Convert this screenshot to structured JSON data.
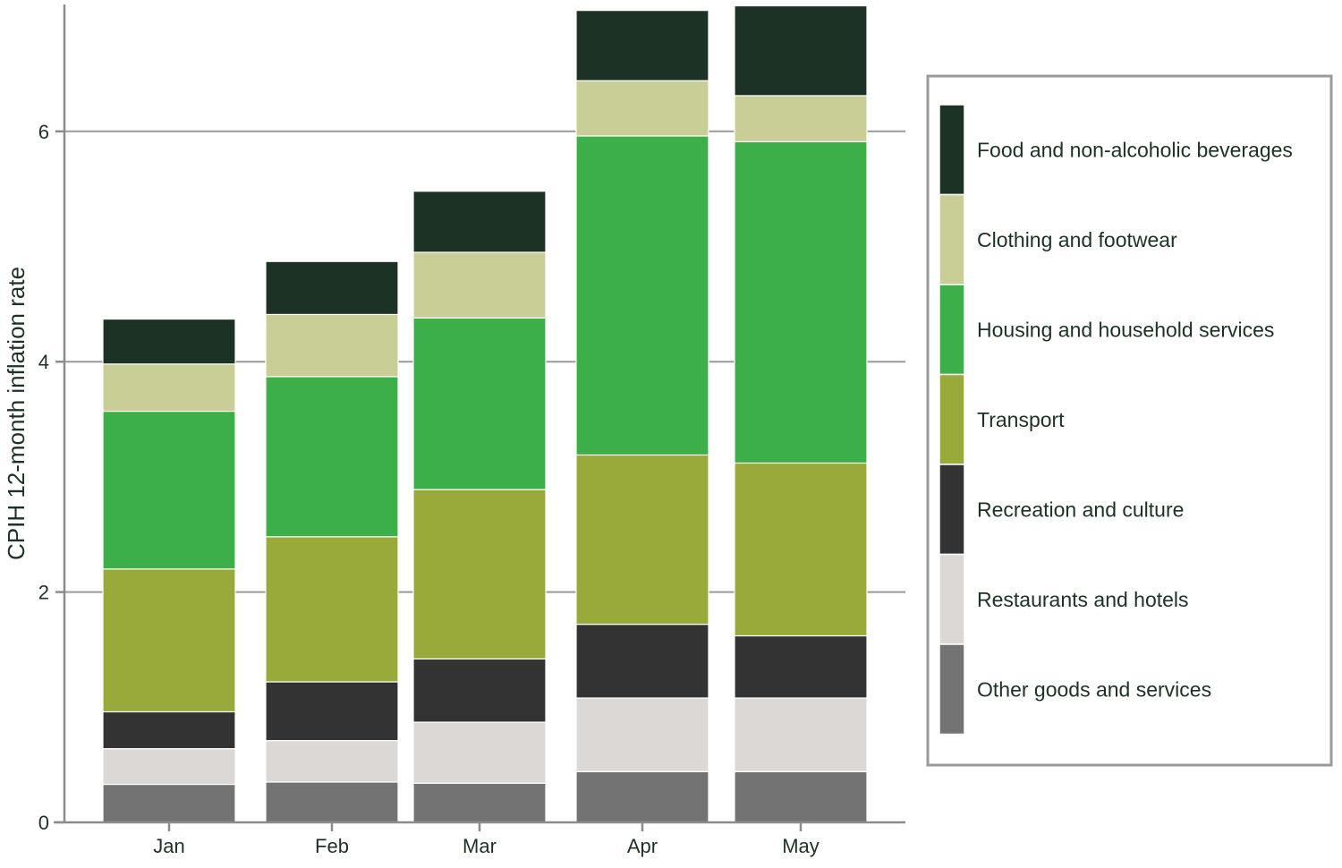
{
  "chart_data": {
    "type": "bar",
    "stacked": true,
    "title": "",
    "xlabel": "",
    "ylabel": "CPIH 12-month inflation rate",
    "ylim": [
      0,
      7.1
    ],
    "yticks": [
      "0",
      "2",
      "4",
      "6"
    ],
    "ytick_values": [
      0,
      2,
      4,
      6
    ],
    "grid": "horizontal",
    "legend_position": "right",
    "categories": [
      "Jan",
      "Feb",
      "Mar",
      "Apr",
      "May"
    ],
    "series": [
      {
        "name": "Other goods and services",
        "color": "#737373",
        "values": [
          0.33,
          0.35,
          0.34,
          0.44,
          0.44
        ]
      },
      {
        "name": "Restaurants and hotels",
        "color": "#dcd8d5",
        "values": [
          0.31,
          0.36,
          0.53,
          0.64,
          0.64
        ]
      },
      {
        "name": "Recreation and culture",
        "color": "#333333",
        "values": [
          0.32,
          0.51,
          0.55,
          0.64,
          0.54
        ]
      },
      {
        "name": "Transport",
        "color": "#99a93a",
        "values": [
          1.24,
          1.26,
          1.47,
          1.47,
          1.5
        ]
      },
      {
        "name": "Housing and household services",
        "color": "#3caf48",
        "values": [
          1.37,
          1.39,
          1.49,
          2.77,
          2.79
        ]
      },
      {
        "name": "Clothing and footwear",
        "color": "#c9cd96",
        "values": [
          0.41,
          0.54,
          0.57,
          0.48,
          0.4
        ]
      },
      {
        "name": "Food and non-alcoholic beverages",
        "color": "#1c3224",
        "values": [
          0.39,
          0.46,
          0.53,
          0.61,
          0.78
        ]
      }
    ]
  },
  "legend_order": [
    "Food and non-alcoholic beverages",
    "Clothing and footwear",
    "Housing and household services",
    "Transport",
    "Recreation and culture",
    "Restaurants and hotels",
    "Other goods and services"
  ]
}
